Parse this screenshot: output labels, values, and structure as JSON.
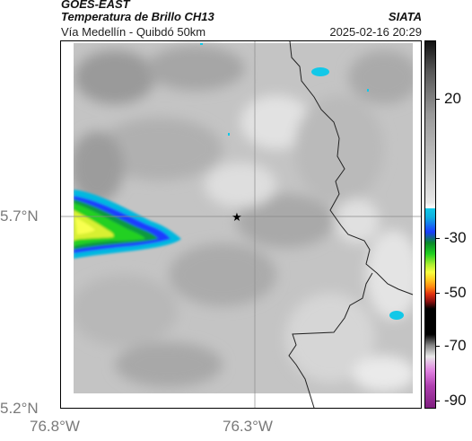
{
  "header": {
    "satellite": "GOES-EAST",
    "product": "Temperatura de Brillo CH13",
    "location": "Vía Medellín - Quibdó 50km",
    "organization": "SIATA",
    "timestamp": "2025-02-16 20:29"
  },
  "axes": {
    "lat_ticks": [
      "5.7°N",
      "5.2°N"
    ],
    "lon_ticks": [
      "76.8°W",
      "76.3°W"
    ]
  },
  "colorbar": {
    "ticks": [
      "20",
      "-30",
      "-50",
      "-70",
      "-90"
    ],
    "tick_values": [
      20,
      -30,
      -50,
      -70,
      -90
    ],
    "range": [
      -95,
      45
    ]
  },
  "map": {
    "marker": "star-marker",
    "colors": {
      "cold_core": "#f0ff30",
      "green": "#22cc22",
      "blue": "#1a50ff",
      "cyan": "#10c8e8",
      "cloud_gray": "#bdbdbd"
    }
  }
}
